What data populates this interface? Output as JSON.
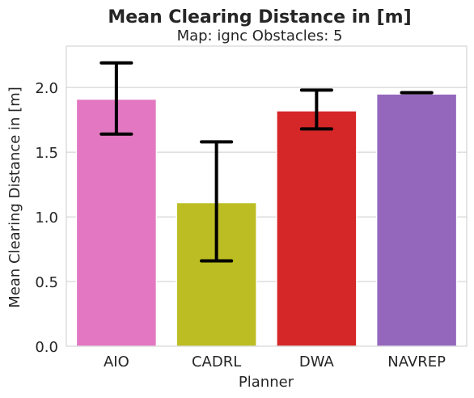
{
  "chart_data": {
    "type": "bar",
    "title": "Mean Clearing Distance in [m]",
    "subtitle": "Map: ignc Obstacles: 5",
    "xlabel": "Planner",
    "ylabel": "Mean Clearing Distance in [m]",
    "categories": [
      "AIO",
      "CADRL",
      "DWA",
      "NAVREP"
    ],
    "values": [
      1.91,
      1.11,
      1.82,
      1.95
    ],
    "error_low": [
      1.64,
      0.66,
      1.68,
      1.96
    ],
    "error_high": [
      2.19,
      1.58,
      1.98,
      1.96
    ],
    "colors": [
      "#e377c2",
      "#bcbd22",
      "#d62728",
      "#9467bd"
    ],
    "ylim": [
      0,
      2.32
    ],
    "yticks": [
      "0.0",
      "0.5",
      "1.0",
      "1.5",
      "2.0"
    ],
    "grid": "horizontal"
  }
}
